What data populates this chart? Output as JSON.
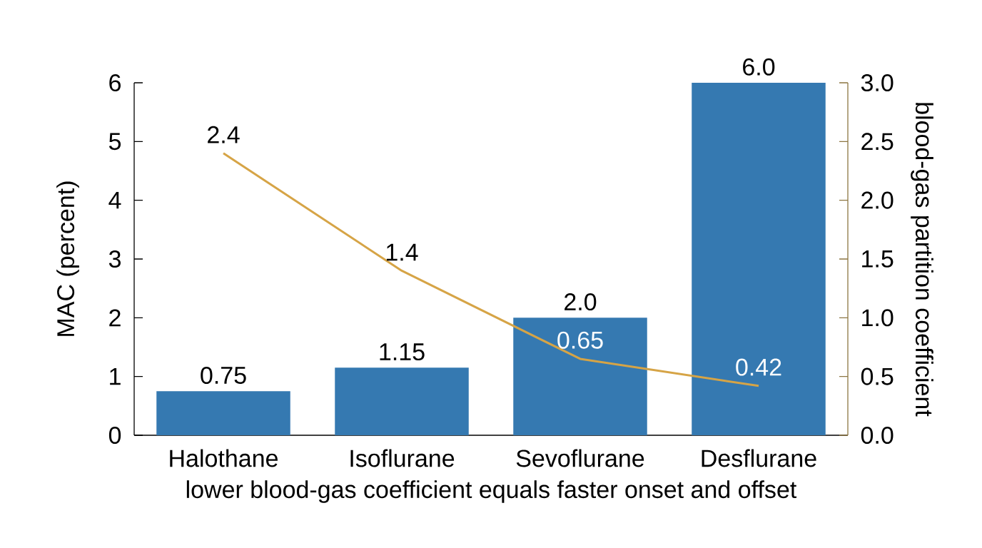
{
  "chart_data": {
    "type": "bar",
    "categories": [
      "Halothane",
      "Isoflurane",
      "Sevoflurane",
      "Desflurane"
    ],
    "series": [
      {
        "color": "#3579b1",
        "values": [
          0.75,
          1.15,
          2.0,
          6.0
        ],
        "value_labels": [
          "0.75",
          "1.15",
          "2.0",
          "6.0"
        ]
      },
      {
        "type": "line",
        "axis": "y2",
        "color": "#d6a446",
        "values": [
          2.4,
          1.4,
          0.65,
          0.42
        ],
        "value_labels": [
          "2.4",
          "1.4",
          "0.65",
          "0.42"
        ]
      }
    ],
    "xlabel": "lower blood-gas coefficient equals faster onset and offset",
    "ylabel": "MAC (percent)",
    "y2label": "blood-gas partition coefficient",
    "ylim": [
      0,
      6
    ],
    "yticks": [
      0,
      1,
      2,
      3,
      4,
      5,
      6
    ],
    "y2lim": [
      0,
      3
    ],
    "y2ticks": [
      {
        "value": 0,
        "label": "0.0"
      },
      0.5,
      {
        "value": 1,
        "label": "1.0"
      },
      1.5,
      {
        "value": 2,
        "label": "2.0"
      },
      2.5,
      {
        "value": 3,
        "label": "3.0"
      }
    ]
  }
}
